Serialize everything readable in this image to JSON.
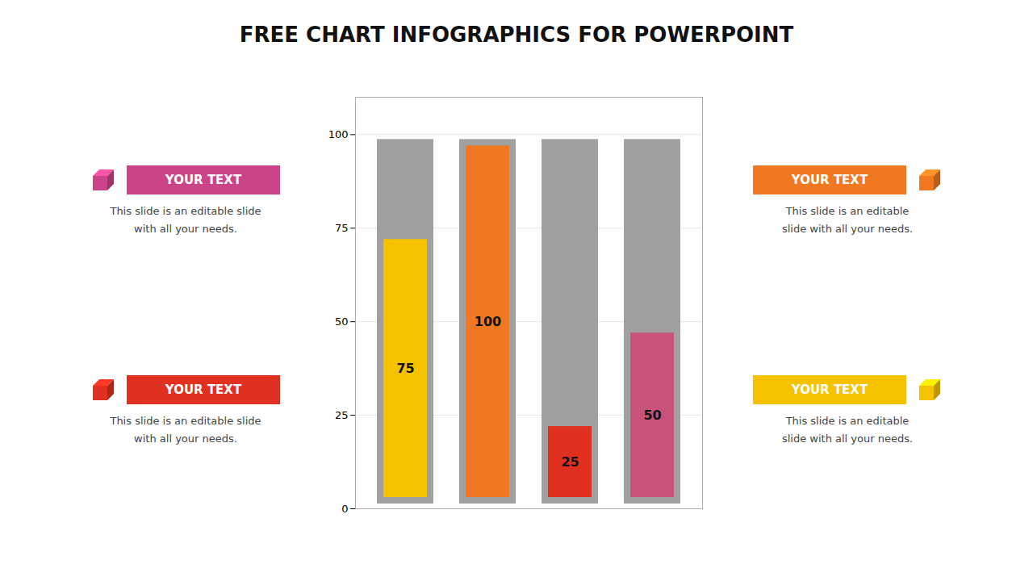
{
  "chart_data": {
    "type": "bar",
    "title": "FREE CHART INFOGRAPHICS FOR POWERPOINT",
    "categories": [
      null,
      null,
      null,
      null
    ],
    "values": [
      75,
      100,
      25,
      50
    ],
    "colors": [
      "#F5C200",
      "#F07820",
      "#E03020",
      "#C8527A"
    ],
    "total": 100,
    "total_color": "#A0A0A0",
    "ylim": [
      0,
      110
    ],
    "yticks": [
      0,
      25,
      50,
      75,
      100
    ],
    "grid": true,
    "data_labels": true,
    "tick_labels": "y",
    "annotations": [
      {
        "text": "YOUR TEXT",
        "description": "This slide is an editable slide\nwith all your needs.",
        "color": "#CC4488"
      },
      {
        "text": "YOUR TEXT",
        "description": "This slide is an editable slide\nwith all your needs.",
        "color": "#E03020"
      },
      {
        "text": "YOUR TEXT",
        "description": "This slide is an editable\nslide with all your needs.",
        "color": "#F07820"
      },
      {
        "text": "YOUR TEXT",
        "description": "This slide is an editable\nslide with all your needs.",
        "color": "#F5C200"
      }
    ]
  }
}
